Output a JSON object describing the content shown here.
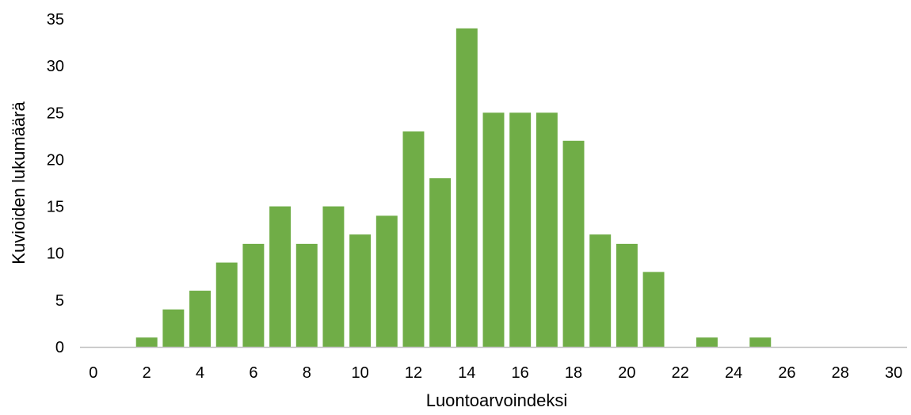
{
  "chart_data": {
    "type": "bar",
    "title": "",
    "xlabel": "Luontoarvoindeksi",
    "ylabel": "Kuvioiden lukumäärä",
    "x": [
      0,
      1,
      2,
      3,
      4,
      5,
      6,
      7,
      8,
      9,
      10,
      11,
      12,
      13,
      14,
      15,
      16,
      17,
      18,
      19,
      20,
      21,
      22,
      23,
      24,
      25,
      26,
      27,
      28,
      29,
      30
    ],
    "values": [
      0,
      0,
      1,
      4,
      6,
      9,
      11,
      15,
      11,
      15,
      12,
      14,
      23,
      18,
      34,
      25,
      25,
      25,
      22,
      12,
      11,
      8,
      0,
      1,
      0,
      1,
      0,
      0,
      0,
      0,
      0
    ],
    "xlim": [
      0,
      30
    ],
    "ylim": [
      0,
      35
    ],
    "xticks": [
      "0",
      "2",
      "4",
      "6",
      "8",
      "10",
      "12",
      "14",
      "16",
      "18",
      "20",
      "22",
      "24",
      "26",
      "28",
      "30"
    ],
    "yticks": [
      "0",
      "5",
      "10",
      "15",
      "20",
      "25",
      "30",
      "35"
    ],
    "bar_color": "#70ad47",
    "grid": false,
    "legend": "none"
  }
}
